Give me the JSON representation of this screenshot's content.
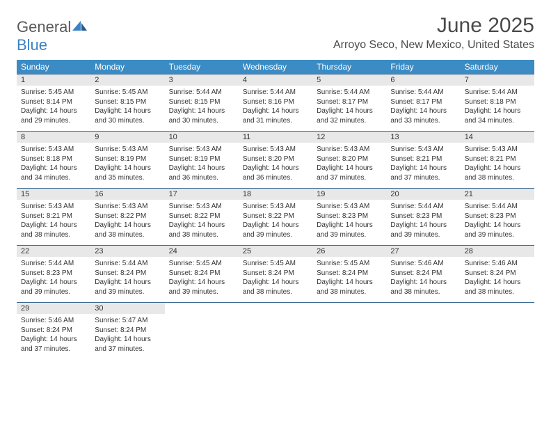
{
  "logo": {
    "part1": "General",
    "part2": "Blue"
  },
  "title": "June 2025",
  "location": "Arroyo Seco, New Mexico, United States",
  "colors": {
    "header_bg": "#3b8bc4",
    "header_text": "#ffffff",
    "daynum_bg": "#e8e8e8",
    "rule": "#3b6a94",
    "logo_gray": "#5a5a5a",
    "logo_blue": "#3b82c4",
    "text": "#333333",
    "background": "#ffffff"
  },
  "typography": {
    "title_fontsize": 30,
    "location_fontsize": 16,
    "dow_fontsize": 12,
    "daynum_fontsize": 11,
    "cell_fontsize": 10
  },
  "days_of_week": [
    "Sunday",
    "Monday",
    "Tuesday",
    "Wednesday",
    "Thursday",
    "Friday",
    "Saturday"
  ],
  "weeks": [
    [
      {
        "n": "1",
        "sr": "Sunrise: 5:45 AM",
        "ss": "Sunset: 8:14 PM",
        "dl": "Daylight: 14 hours and 29 minutes."
      },
      {
        "n": "2",
        "sr": "Sunrise: 5:45 AM",
        "ss": "Sunset: 8:15 PM",
        "dl": "Daylight: 14 hours and 30 minutes."
      },
      {
        "n": "3",
        "sr": "Sunrise: 5:44 AM",
        "ss": "Sunset: 8:15 PM",
        "dl": "Daylight: 14 hours and 30 minutes."
      },
      {
        "n": "4",
        "sr": "Sunrise: 5:44 AM",
        "ss": "Sunset: 8:16 PM",
        "dl": "Daylight: 14 hours and 31 minutes."
      },
      {
        "n": "5",
        "sr": "Sunrise: 5:44 AM",
        "ss": "Sunset: 8:17 PM",
        "dl": "Daylight: 14 hours and 32 minutes."
      },
      {
        "n": "6",
        "sr": "Sunrise: 5:44 AM",
        "ss": "Sunset: 8:17 PM",
        "dl": "Daylight: 14 hours and 33 minutes."
      },
      {
        "n": "7",
        "sr": "Sunrise: 5:44 AM",
        "ss": "Sunset: 8:18 PM",
        "dl": "Daylight: 14 hours and 34 minutes."
      }
    ],
    [
      {
        "n": "8",
        "sr": "Sunrise: 5:43 AM",
        "ss": "Sunset: 8:18 PM",
        "dl": "Daylight: 14 hours and 34 minutes."
      },
      {
        "n": "9",
        "sr": "Sunrise: 5:43 AM",
        "ss": "Sunset: 8:19 PM",
        "dl": "Daylight: 14 hours and 35 minutes."
      },
      {
        "n": "10",
        "sr": "Sunrise: 5:43 AM",
        "ss": "Sunset: 8:19 PM",
        "dl": "Daylight: 14 hours and 36 minutes."
      },
      {
        "n": "11",
        "sr": "Sunrise: 5:43 AM",
        "ss": "Sunset: 8:20 PM",
        "dl": "Daylight: 14 hours and 36 minutes."
      },
      {
        "n": "12",
        "sr": "Sunrise: 5:43 AM",
        "ss": "Sunset: 8:20 PM",
        "dl": "Daylight: 14 hours and 37 minutes."
      },
      {
        "n": "13",
        "sr": "Sunrise: 5:43 AM",
        "ss": "Sunset: 8:21 PM",
        "dl": "Daylight: 14 hours and 37 minutes."
      },
      {
        "n": "14",
        "sr": "Sunrise: 5:43 AM",
        "ss": "Sunset: 8:21 PM",
        "dl": "Daylight: 14 hours and 38 minutes."
      }
    ],
    [
      {
        "n": "15",
        "sr": "Sunrise: 5:43 AM",
        "ss": "Sunset: 8:21 PM",
        "dl": "Daylight: 14 hours and 38 minutes."
      },
      {
        "n": "16",
        "sr": "Sunrise: 5:43 AM",
        "ss": "Sunset: 8:22 PM",
        "dl": "Daylight: 14 hours and 38 minutes."
      },
      {
        "n": "17",
        "sr": "Sunrise: 5:43 AM",
        "ss": "Sunset: 8:22 PM",
        "dl": "Daylight: 14 hours and 38 minutes."
      },
      {
        "n": "18",
        "sr": "Sunrise: 5:43 AM",
        "ss": "Sunset: 8:22 PM",
        "dl": "Daylight: 14 hours and 39 minutes."
      },
      {
        "n": "19",
        "sr": "Sunrise: 5:43 AM",
        "ss": "Sunset: 8:23 PM",
        "dl": "Daylight: 14 hours and 39 minutes."
      },
      {
        "n": "20",
        "sr": "Sunrise: 5:44 AM",
        "ss": "Sunset: 8:23 PM",
        "dl": "Daylight: 14 hours and 39 minutes."
      },
      {
        "n": "21",
        "sr": "Sunrise: 5:44 AM",
        "ss": "Sunset: 8:23 PM",
        "dl": "Daylight: 14 hours and 39 minutes."
      }
    ],
    [
      {
        "n": "22",
        "sr": "Sunrise: 5:44 AM",
        "ss": "Sunset: 8:23 PM",
        "dl": "Daylight: 14 hours and 39 minutes."
      },
      {
        "n": "23",
        "sr": "Sunrise: 5:44 AM",
        "ss": "Sunset: 8:24 PM",
        "dl": "Daylight: 14 hours and 39 minutes."
      },
      {
        "n": "24",
        "sr": "Sunrise: 5:45 AM",
        "ss": "Sunset: 8:24 PM",
        "dl": "Daylight: 14 hours and 39 minutes."
      },
      {
        "n": "25",
        "sr": "Sunrise: 5:45 AM",
        "ss": "Sunset: 8:24 PM",
        "dl": "Daylight: 14 hours and 38 minutes."
      },
      {
        "n": "26",
        "sr": "Sunrise: 5:45 AM",
        "ss": "Sunset: 8:24 PM",
        "dl": "Daylight: 14 hours and 38 minutes."
      },
      {
        "n": "27",
        "sr": "Sunrise: 5:46 AM",
        "ss": "Sunset: 8:24 PM",
        "dl": "Daylight: 14 hours and 38 minutes."
      },
      {
        "n": "28",
        "sr": "Sunrise: 5:46 AM",
        "ss": "Sunset: 8:24 PM",
        "dl": "Daylight: 14 hours and 38 minutes."
      }
    ],
    [
      {
        "n": "29",
        "sr": "Sunrise: 5:46 AM",
        "ss": "Sunset: 8:24 PM",
        "dl": "Daylight: 14 hours and 37 minutes."
      },
      {
        "n": "30",
        "sr": "Sunrise: 5:47 AM",
        "ss": "Sunset: 8:24 PM",
        "dl": "Daylight: 14 hours and 37 minutes."
      },
      null,
      null,
      null,
      null,
      null
    ]
  ]
}
